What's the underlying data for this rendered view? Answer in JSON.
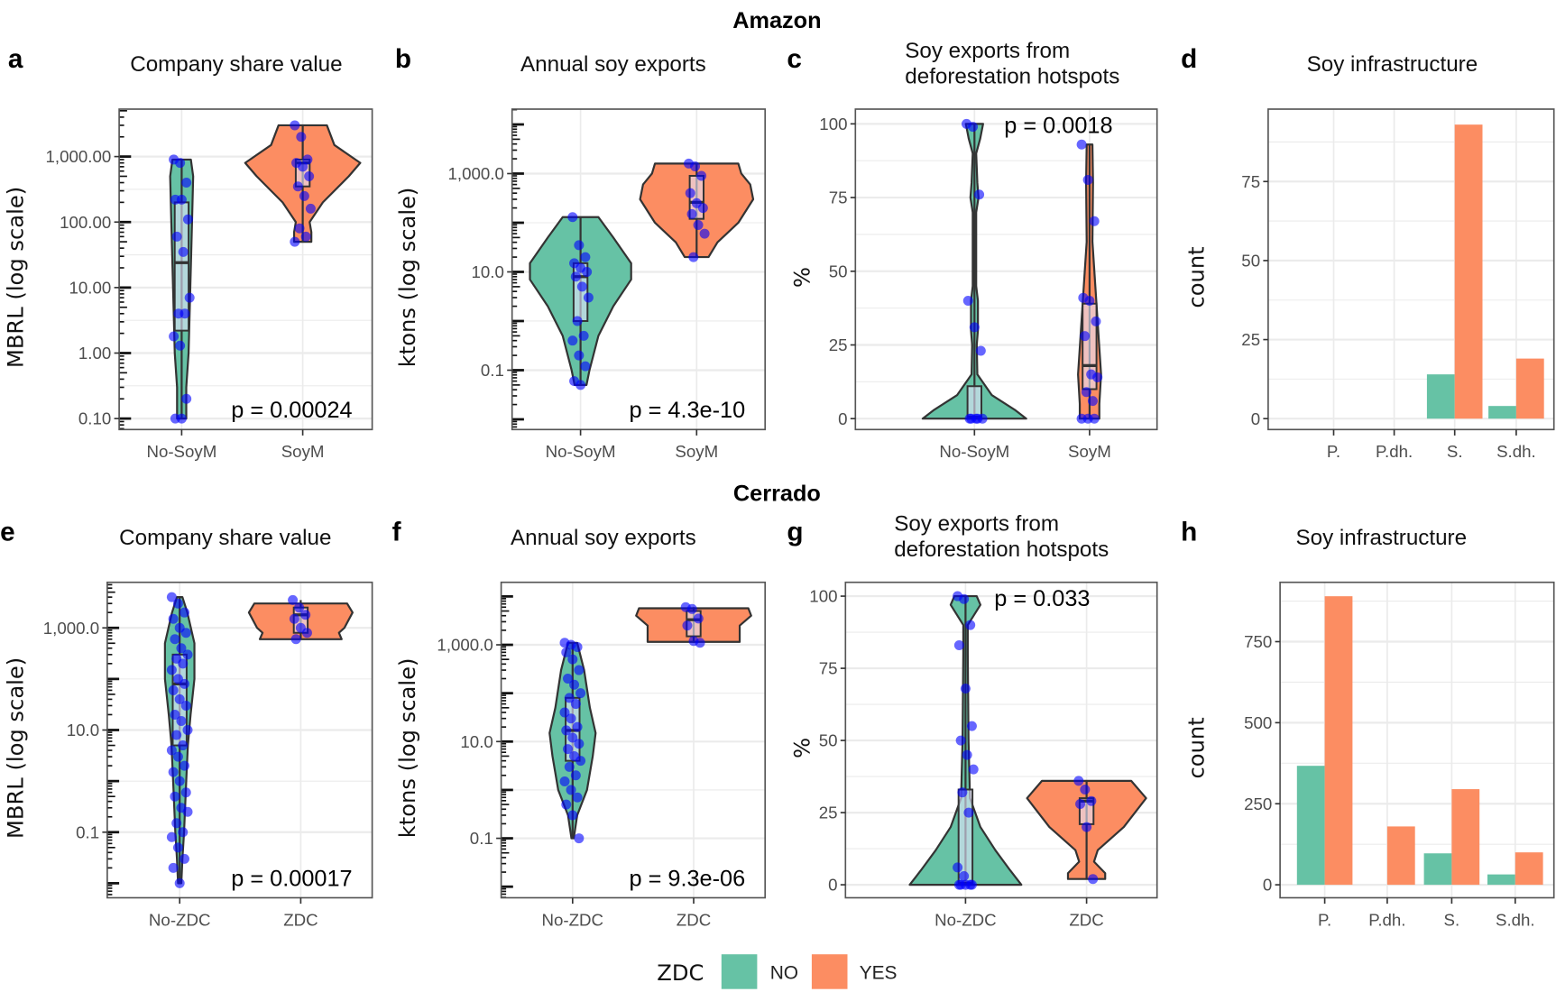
{
  "sections": [
    "Amazon",
    "Cerrado"
  ],
  "legend": {
    "title": "ZDC",
    "entries": [
      {
        "label": "NO",
        "color": "#66c2a5"
      },
      {
        "label": "YES",
        "color": "#fc8d62"
      }
    ]
  },
  "colors": {
    "no": "#66c2a5",
    "yes": "#fc8d62",
    "points": "#0000ff",
    "grid": "#ebebeb",
    "border": "#333333"
  },
  "chart_data": [
    {
      "panel": "a",
      "type": "violin",
      "title": [
        "Company share value"
      ],
      "ylabel": "MBRL (log scale)",
      "yscale": "log",
      "ylim": [
        0.068,
        5300
      ],
      "yticks": [
        0.1,
        1,
        10,
        100,
        1000
      ],
      "yticklabels": [
        "0.10",
        "1.00",
        "10.00",
        "100.00",
        "1,000.00"
      ],
      "categories": [
        "No-SoyM",
        "SoyM"
      ],
      "pvalue": "p = 0.00024",
      "groups": [
        {
          "category": "No-SoyM",
          "zdc": "NO",
          "density": [
            [
              900,
              0.16
            ],
            [
              500,
              0.2
            ],
            [
              100,
              0.18
            ],
            [
              10,
              0.15
            ],
            [
              1,
              0.12
            ],
            [
              0.3,
              0.08
            ],
            [
              0.1,
              0.08
            ]
          ],
          "box": {
            "q1": 2.2,
            "median": 24,
            "q3": 200
          },
          "points": [
            900,
            800,
            400,
            220,
            220,
            110,
            60,
            35,
            7,
            4,
            4,
            1.8,
            1.3,
            0.2,
            0.1,
            0.1
          ]
        },
        {
          "category": "SoyM",
          "zdc": "YES",
          "density": [
            [
              3000,
              0.42
            ],
            [
              1500,
              0.55
            ],
            [
              800,
              1.0
            ],
            [
              500,
              0.8
            ],
            [
              200,
              0.35
            ],
            [
              100,
              0.12
            ],
            [
              70,
              0.15
            ],
            [
              50,
              0.15
            ]
          ],
          "box": {
            "q1": 350,
            "median": 800,
            "q3": 900
          },
          "points": [
            3000,
            2000,
            900,
            800,
            700,
            500,
            350,
            250,
            160,
            80,
            60,
            50
          ]
        }
      ]
    },
    {
      "panel": "b",
      "type": "violin",
      "title": [
        "Annual soy exports"
      ],
      "ylabel": "ktons (log scale)",
      "yscale": "log",
      "ylim": [
        0.0062,
        20500
      ],
      "yticks": [
        0.1,
        10,
        1000
      ],
      "yticklabels": [
        "0.1",
        "10.0",
        "1,000.0"
      ],
      "categories": [
        "No-SoyM",
        "SoyM"
      ],
      "pvalue": "p = 4.3e-10",
      "groups": [
        {
          "category": "No-SoyM",
          "zdc": "NO",
          "density": [
            [
              130,
              0.3
            ],
            [
              50,
              0.55
            ],
            [
              15,
              0.85
            ],
            [
              7,
              0.85
            ],
            [
              2,
              0.55
            ],
            [
              0.5,
              0.3
            ],
            [
              0.1,
              0.15
            ],
            [
              0.05,
              0.1
            ]
          ],
          "box": {
            "q1": 1.0,
            "median": 8,
            "q3": 15
          },
          "points": [
            130,
            35,
            20,
            15,
            12,
            10,
            8,
            5,
            3,
            1,
            0.5,
            0.4,
            0.2,
            0.12,
            0.06,
            0.05
          ]
        },
        {
          "category": "SoyM",
          "zdc": "YES",
          "density": [
            [
              1600,
              0.7
            ],
            [
              1000,
              0.75
            ],
            [
              600,
              0.9
            ],
            [
              300,
              0.95
            ],
            [
              100,
              0.7
            ],
            [
              40,
              0.35
            ],
            [
              20,
              0.2
            ]
          ],
          "box": {
            "q1": 120,
            "median": 260,
            "q3": 900
          },
          "points": [
            1600,
            1400,
            900,
            400,
            250,
            200,
            150,
            90,
            60,
            20
          ]
        }
      ]
    },
    {
      "panel": "c",
      "type": "violin",
      "title": [
        "Soy exports from",
        "deforestation hotspots"
      ],
      "ylabel": "%",
      "yscale": "linear",
      "ylim": [
        -3.7,
        105
      ],
      "yticks": [
        0,
        25,
        50,
        75,
        100
      ],
      "yticklabels": [
        "0",
        "25",
        "50",
        "75",
        "100"
      ],
      "categories": [
        "No-SoyM",
        "SoyM"
      ],
      "pvalue": "p = 0.0018",
      "groups": [
        {
          "category": "No-SoyM",
          "zdc": "NO",
          "density": [
            [
              100,
              0.15
            ],
            [
              95,
              0.1
            ],
            [
              90,
              0.03
            ],
            [
              80,
              0.05
            ],
            [
              75,
              0.07
            ],
            [
              70,
              0.03
            ],
            [
              45,
              0.03
            ],
            [
              40,
              0.06
            ],
            [
              30,
              0.06
            ],
            [
              25,
              0.04
            ],
            [
              15,
              0.05
            ],
            [
              8,
              0.3
            ],
            [
              3,
              0.7
            ],
            [
              0,
              0.9
            ]
          ],
          "box": {
            "q1": 0,
            "median": 0.5,
            "q3": 11
          },
          "points": [
            100,
            99,
            76,
            40,
            31,
            23,
            0,
            0,
            0,
            0,
            0
          ]
        },
        {
          "category": "SoyM",
          "zdc": "YES",
          "density": [
            [
              93,
              0.05
            ],
            [
              80,
              0.06
            ],
            [
              60,
              0.05
            ],
            [
              45,
              0.1
            ],
            [
              30,
              0.15
            ],
            [
              15,
              0.2
            ],
            [
              5,
              0.17
            ],
            [
              0,
              0.17
            ]
          ],
          "box": {
            "q1": 10,
            "median": 18,
            "q3": 39
          },
          "points": [
            93,
            81,
            67,
            41,
            40,
            33,
            28,
            15,
            14,
            9,
            6,
            0,
            0,
            0
          ]
        }
      ]
    },
    {
      "panel": "d",
      "type": "bar",
      "title": [
        "Soy infrastructure"
      ],
      "ylabel": "count",
      "ylim": [
        -3.45,
        97.9
      ],
      "yticks": [
        0,
        25,
        50,
        75
      ],
      "yticklabels": [
        "0",
        "25",
        "50",
        "75"
      ],
      "categories": [
        "P.",
        "P.dh.",
        "S.",
        "S.dh."
      ],
      "series": [
        {
          "name": "NO",
          "values": [
            0,
            0,
            14,
            4
          ]
        },
        {
          "name": "YES",
          "values": [
            0,
            0,
            93,
            19
          ]
        }
      ]
    },
    {
      "panel": "e",
      "type": "violin",
      "title": [
        "Company share value"
      ],
      "ylabel": "MBRL (log scale)",
      "yscale": "log",
      "ylim": [
        0.0052,
        7800
      ],
      "yticks": [
        0.1,
        10,
        1000
      ],
      "yticklabels": [
        "0.1",
        "10.0",
        "1,000.0"
      ],
      "categories": [
        "No-ZDC",
        "ZDC"
      ],
      "pvalue": "p = 0.00017",
      "groups": [
        {
          "category": "No-ZDC",
          "zdc": "NO",
          "density": [
            [
              4000,
              0.05
            ],
            [
              2000,
              0.14
            ],
            [
              500,
              0.27
            ],
            [
              100,
              0.27
            ],
            [
              20,
              0.2
            ],
            [
              5,
              0.15
            ],
            [
              1,
              0.12
            ],
            [
              0.1,
              0.08
            ],
            [
              0.03,
              0.05
            ],
            [
              0.01,
              0.03
            ]
          ],
          "box": {
            "q1": 5,
            "median": 80,
            "q3": 300
          },
          "points": [
            4000,
            3000,
            2000,
            1500,
            1000,
            800,
            600,
            400,
            300,
            250,
            200,
            150,
            100,
            80,
            60,
            40,
            30,
            20,
            15,
            10,
            8,
            5,
            4,
            3,
            2,
            1.5,
            1,
            0.6,
            0.5,
            0.3,
            0.25,
            0.15,
            0.1,
            0.08,
            0.05,
            0.03,
            0.02,
            0.01
          ]
        },
        {
          "category": "ZDC",
          "zdc": "YES",
          "density": [
            [
              3000,
              0.85
            ],
            [
              2000,
              0.95
            ],
            [
              1000,
              0.8
            ],
            [
              800,
              0.7
            ],
            [
              600,
              0.75
            ]
          ],
          "box": {
            "q1": 800,
            "median": 1800,
            "q3": 2500
          },
          "points": [
            3500,
            2500,
            1800,
            1500,
            1000,
            800,
            600
          ]
        }
      ]
    },
    {
      "panel": "f",
      "type": "violin",
      "title": [
        "Annual soy exports"
      ],
      "ylabel": "ktons (log scale)",
      "yscale": "log",
      "ylim": [
        0.0059,
        19600
      ],
      "yticks": [
        0.1,
        10,
        1000
      ],
      "yticklabels": [
        "0.1",
        "10.0",
        "1,000.0"
      ],
      "categories": [
        "No-ZDC",
        "ZDC"
      ],
      "pvalue": "p = 9.3e-06",
      "groups": [
        {
          "category": "No-ZDC",
          "zdc": "NO",
          "density": [
            [
              1100,
              0.08
            ],
            [
              300,
              0.2
            ],
            [
              50,
              0.3
            ],
            [
              15,
              0.4
            ],
            [
              5,
              0.35
            ],
            [
              1,
              0.25
            ],
            [
              0.3,
              0.08
            ],
            [
              0.1,
              0.02
            ]
          ],
          "box": {
            "q1": 4,
            "median": 17,
            "q3": 80
          },
          "points": [
            1100,
            1000,
            900,
            700,
            500,
            300,
            200,
            150,
            100,
            80,
            60,
            40,
            30,
            20,
            17,
            12,
            9,
            7,
            5,
            4,
            3,
            2,
            1.5,
            1,
            0.7,
            0.5,
            0.3,
            0.1
          ]
        },
        {
          "category": "ZDC",
          "zdc": "YES",
          "density": [
            [
              5700,
              0.95
            ],
            [
              4000,
              1.0
            ],
            [
              2500,
              0.8
            ],
            [
              1500,
              0.8
            ],
            [
              1150,
              0.8
            ]
          ],
          "box": {
            "q1": 1500,
            "median": 3300,
            "q3": 5000
          },
          "points": [
            6000,
            5500,
            3500,
            2500,
            1200,
            1100
          ]
        }
      ]
    },
    {
      "panel": "g",
      "type": "violin",
      "title": [
        "Soy exports from",
        "deforestation hotspots"
      ],
      "ylabel": "%",
      "yscale": "linear",
      "ylim": [
        -4.5,
        104.8
      ],
      "yticks": [
        0,
        25,
        50,
        75,
        100
      ],
      "yticklabels": [
        "0",
        "25",
        "50",
        "75",
        "100"
      ],
      "categories": [
        "No-ZDC",
        "ZDC"
      ],
      "pvalue": "p = 0.033",
      "groups": [
        {
          "category": "No-ZDC",
          "zdc": "NO",
          "density": [
            [
              100,
              0.15
            ],
            [
              97,
              0.2
            ],
            [
              90,
              0.03
            ],
            [
              80,
              0.03
            ],
            [
              50,
              0.04
            ],
            [
              30,
              0.06
            ],
            [
              20,
              0.2
            ],
            [
              12,
              0.4
            ],
            [
              5,
              0.6
            ],
            [
              0,
              0.75
            ]
          ],
          "box": {
            "q1": 0,
            "median": 0.5,
            "q3": 33
          },
          "points": [
            100,
            99,
            90,
            83,
            68,
            55,
            50,
            45,
            40,
            32,
            25,
            6,
            3,
            0,
            0,
            0,
            0,
            0
          ]
        },
        {
          "category": "ZDC",
          "zdc": "YES",
          "density": [
            [
              36,
              0.6
            ],
            [
              30,
              0.8
            ],
            [
              20,
              0.5
            ],
            [
              12,
              0.15
            ],
            [
              8,
              0.1
            ],
            [
              4,
              0.25
            ],
            [
              2,
              0.25
            ]
          ],
          "box": {
            "q1": 21,
            "median": 29,
            "q3": 30
          },
          "points": [
            36,
            33,
            29,
            28,
            20,
            2
          ]
        }
      ]
    },
    {
      "panel": "h",
      "type": "bar",
      "title": [
        "Soy infrastructure"
      ],
      "ylabel": "count",
      "ylim": [
        -40,
        933
      ],
      "yticks": [
        0,
        250,
        500,
        750
      ],
      "yticklabels": [
        "0",
        "250",
        "500",
        "750"
      ],
      "categories": [
        "P.",
        "P.dh.",
        "S.",
        "S.dh."
      ],
      "series": [
        {
          "name": "NO",
          "values": [
            367,
            0,
            97,
            32
          ]
        },
        {
          "name": "YES",
          "values": [
            890,
            180,
            295,
            100
          ]
        }
      ]
    }
  ]
}
